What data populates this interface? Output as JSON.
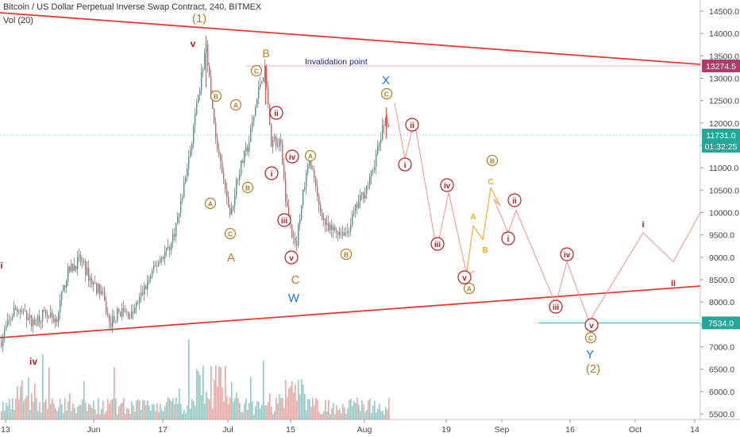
{
  "header": {
    "title": "Bitcoin / US Dollar Perpetual Inverse Swap Contract, 240, BITMEX",
    "indicator": "Vol (20)"
  },
  "colors": {
    "bull": "#26a69a",
    "bear": "#ef5350",
    "trendline": "#e53935",
    "path_red": "#ef9a9a",
    "path_orange": "#f5a623",
    "wave_red": "#b71c1c",
    "wave_brown": "#b07d2a",
    "wave_blue": "#1976d2",
    "marker_resistance": "#b03a6a",
    "marker_price": "#26a69a"
  },
  "chart_data": {
    "type": "candlestick",
    "x_axis": {
      "tick_labels": [
        "13",
        "Jun",
        "17",
        "Jul",
        "15",
        "Aug",
        "19",
        "Sep",
        "16",
        "Oct",
        "14"
      ]
    },
    "y_axis": {
      "tick_labels": [
        "14500.0",
        "14000.0",
        "13500.0",
        "13000.0",
        "12500.0",
        "12000.0",
        "11500.0",
        "11000.0",
        "10500.0",
        "10000.0",
        "9500.0",
        "9000.0",
        "8500.0",
        "8000.0",
        "7500.0",
        "7000.0",
        "6500.0",
        "6000.0",
        "5500.0"
      ],
      "ylim": [
        5450,
        14850
      ]
    },
    "price_markers": [
      {
        "label": "13274.5",
        "value": 13274.5,
        "color": "#b03a6a"
      },
      {
        "label": "11731.0",
        "value": 11731.0,
        "color": "#26a69a"
      },
      {
        "label": "01:32:25",
        "value": 11480,
        "color": "#26a69a"
      },
      {
        "label": "7534.0",
        "value": 7534.0,
        "color": "#26a69a"
      }
    ],
    "annotations": {
      "invalidation": "Invalidation point",
      "waves": [
        {
          "t": "(1)",
          "c": "brown",
          "big": true
        },
        {
          "t": "v",
          "c": "red"
        },
        {
          "t": "B",
          "c": "brown",
          "big": true
        },
        {
          "t": "X",
          "c": "blue",
          "big": true
        },
        {
          "t": "A",
          "c": "brown",
          "big": true
        },
        {
          "t": "C",
          "c": "brown",
          "big": true
        },
        {
          "t": "W",
          "c": "blue",
          "big": true
        },
        {
          "t": "Y",
          "c": "blue",
          "big": true
        },
        {
          "t": "(2)",
          "c": "brown",
          "big": true
        },
        {
          "t": "iv",
          "c": "red"
        },
        {
          "t": "i",
          "c": "red"
        },
        {
          "t": "i",
          "c": "red"
        },
        {
          "t": "ii",
          "c": "red"
        },
        {
          "t": "A",
          "c": "orange"
        },
        {
          "t": "B",
          "c": "orange"
        },
        {
          "t": "C",
          "c": "orange"
        }
      ],
      "circles": [
        {
          "t": "C",
          "c": "brown"
        },
        {
          "t": "B",
          "c": "brown"
        },
        {
          "t": "A",
          "c": "brown"
        },
        {
          "t": "B",
          "c": "brown"
        },
        {
          "t": "A",
          "c": "brown"
        },
        {
          "t": "C",
          "c": "brown"
        },
        {
          "t": "ii",
          "c": "red"
        },
        {
          "t": "i",
          "c": "red"
        },
        {
          "t": "iv",
          "c": "red"
        },
        {
          "t": "iii",
          "c": "red"
        },
        {
          "t": "v",
          "c": "red"
        },
        {
          "t": "A",
          "c": "brown"
        },
        {
          "t": "B",
          "c": "brown"
        },
        {
          "t": "C",
          "c": "brown"
        },
        {
          "t": "ii",
          "c": "red"
        },
        {
          "t": "i",
          "c": "red"
        },
        {
          "t": "iv",
          "c": "red"
        },
        {
          "t": "iii",
          "c": "red"
        },
        {
          "t": "v",
          "c": "red"
        },
        {
          "t": "A",
          "c": "brown"
        },
        {
          "t": "B",
          "c": "brown"
        },
        {
          "t": "ii",
          "c": "red"
        },
        {
          "t": "i",
          "c": "red"
        },
        {
          "t": "iv",
          "c": "red"
        },
        {
          "t": "iii",
          "c": "red"
        },
        {
          "t": "v",
          "c": "red"
        },
        {
          "t": "C",
          "c": "brown"
        }
      ]
    }
  }
}
